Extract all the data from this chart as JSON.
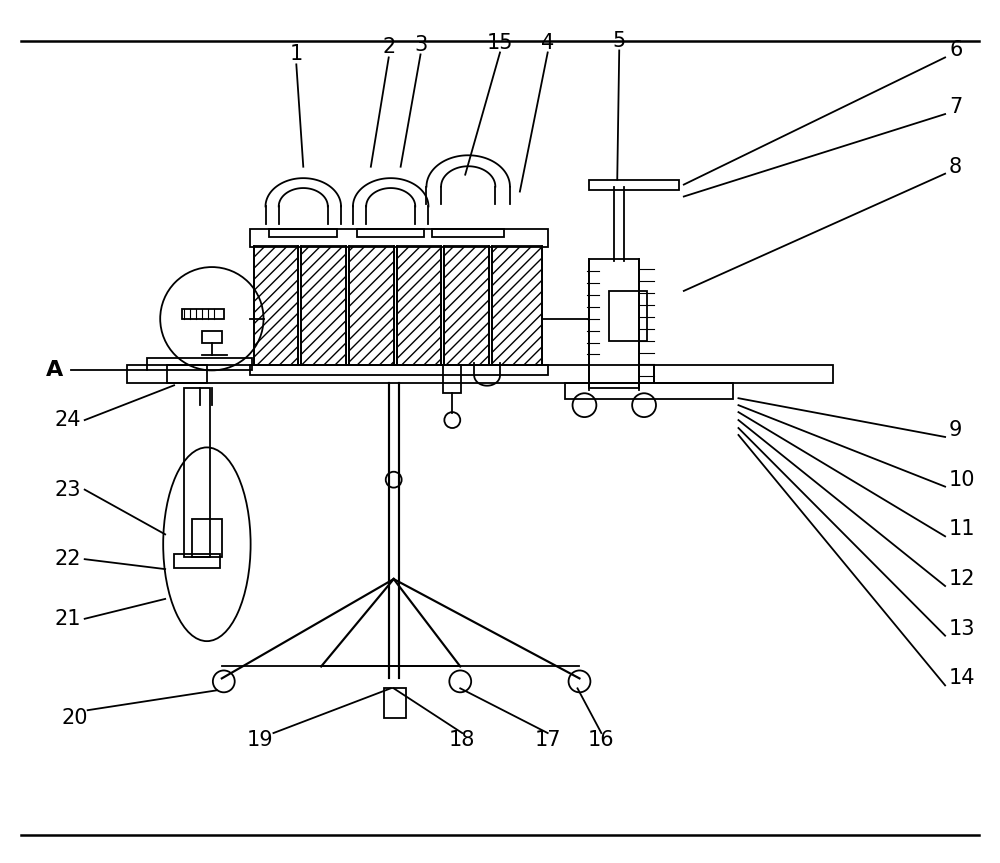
{
  "bg_color": "#ffffff",
  "line_color": "#000000",
  "fig_width": 10.0,
  "fig_height": 8.63,
  "label_fontsize": 15,
  "leader_lw": 1.3,
  "lw": 1.3
}
